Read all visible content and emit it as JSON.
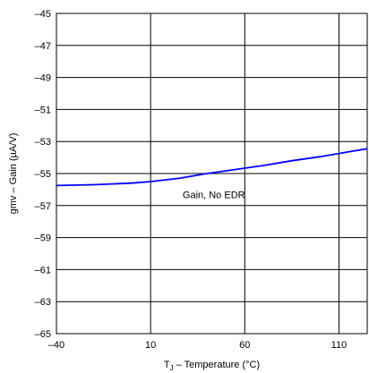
{
  "chart_data": {
    "type": "line",
    "xlabel": "T J – Temperature (°C)",
    "xlabel_main": "T",
    "xlabel_sub": "J",
    "xlabel_rest": " – Temperature (°C)",
    "ylabel": "gmv – Gain (µA/V)",
    "xlim": [
      -40,
      125
    ],
    "ylim": [
      -65,
      -45
    ],
    "x_ticks": [
      -40,
      10,
      60,
      110
    ],
    "x_tick_labels": [
      "–40",
      "10",
      "60",
      "110"
    ],
    "y_ticks": [
      -45,
      -47,
      -49,
      -51,
      -53,
      -55,
      -57,
      -59,
      -61,
      -63,
      -65
    ],
    "y_tick_labels": [
      "–45",
      "–47",
      "–49",
      "–51",
      "–53",
      "–55",
      "–57",
      "–59",
      "–61",
      "–63",
      "–65"
    ],
    "grid": true,
    "series": [
      {
        "name": "Gain, No EDR",
        "color": "#0000ff",
        "x": [
          -40,
          -20,
          0,
          10,
          25,
          40,
          55,
          70,
          85,
          100,
          115,
          125
        ],
        "y": [
          -55.75,
          -55.7,
          -55.6,
          -55.5,
          -55.3,
          -55.0,
          -54.75,
          -54.5,
          -54.2,
          -53.95,
          -53.65,
          -53.45
        ]
      }
    ],
    "annotation": {
      "text": "Gain, No EDR",
      "x": 27,
      "y": -56.3
    }
  }
}
